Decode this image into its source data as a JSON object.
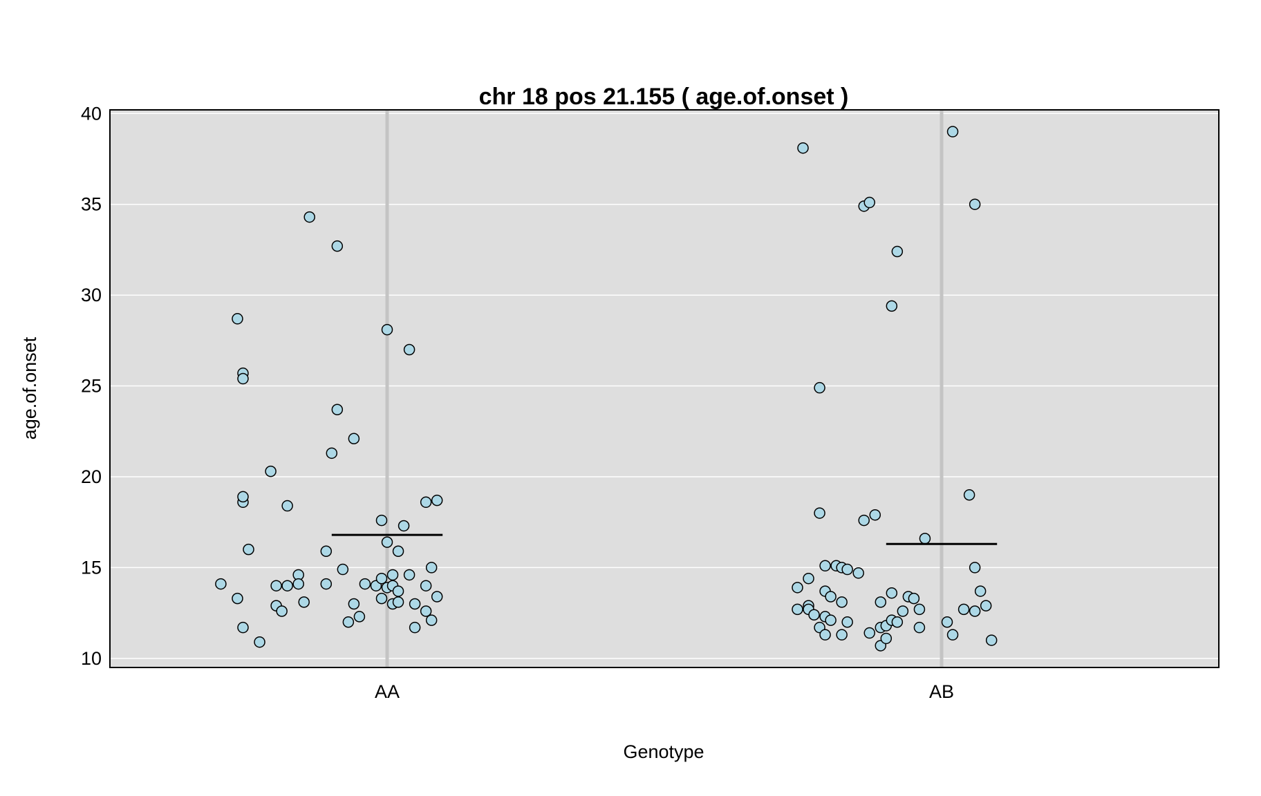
{
  "chart_data": {
    "type": "scatter",
    "title": "chr 18 pos 21.155 ( age.of.onset )",
    "xlabel": "Genotype",
    "ylabel": "age.of.onset",
    "categories": [
      "AA",
      "AB"
    ],
    "ylim": [
      9.5,
      40.2
    ],
    "yticks": [
      10,
      15,
      20,
      25,
      30,
      35,
      40
    ],
    "grid": true,
    "colors": {
      "panel_background": "#dedede",
      "gridline": "#ffffff",
      "category_line": "#c4c4c4",
      "point_fill": "#add8e6",
      "point_stroke": "#000000",
      "mean_line": "#000000"
    },
    "means": [
      {
        "category": "AA",
        "value": 16.8
      },
      {
        "category": "AB",
        "value": 16.3
      }
    ],
    "series": [
      {
        "category": "AA",
        "points": [
          {
            "x": 0.7,
            "y": 14.1
          },
          {
            "x": 0.73,
            "y": 28.7
          },
          {
            "x": 0.73,
            "y": 13.3
          },
          {
            "x": 0.74,
            "y": 11.7
          },
          {
            "x": 0.74,
            "y": 25.7
          },
          {
            "x": 0.74,
            "y": 25.4
          },
          {
            "x": 0.74,
            "y": 18.6
          },
          {
            "x": 0.74,
            "y": 18.9
          },
          {
            "x": 0.75,
            "y": 16.0
          },
          {
            "x": 0.77,
            "y": 10.9
          },
          {
            "x": 0.79,
            "y": 20.3
          },
          {
            "x": 0.8,
            "y": 14.0
          },
          {
            "x": 0.8,
            "y": 12.9
          },
          {
            "x": 0.81,
            "y": 12.6
          },
          {
            "x": 0.82,
            "y": 14.0
          },
          {
            "x": 0.82,
            "y": 18.4
          },
          {
            "x": 0.84,
            "y": 14.6
          },
          {
            "x": 0.84,
            "y": 14.1
          },
          {
            "x": 0.85,
            "y": 13.1
          },
          {
            "x": 0.86,
            "y": 34.3
          },
          {
            "x": 0.89,
            "y": 15.9
          },
          {
            "x": 0.89,
            "y": 14.1
          },
          {
            "x": 0.9,
            "y": 21.3
          },
          {
            "x": 0.91,
            "y": 32.7
          },
          {
            "x": 0.91,
            "y": 23.7
          },
          {
            "x": 0.92,
            "y": 14.9
          },
          {
            "x": 0.93,
            "y": 12.0
          },
          {
            "x": 0.94,
            "y": 22.1
          },
          {
            "x": 0.94,
            "y": 13.0
          },
          {
            "x": 0.95,
            "y": 12.3
          },
          {
            "x": 0.96,
            "y": 14.1
          },
          {
            "x": 0.98,
            "y": 14.0
          },
          {
            "x": 0.99,
            "y": 14.4
          },
          {
            "x": 0.99,
            "y": 17.6
          },
          {
            "x": 0.99,
            "y": 13.3
          },
          {
            "x": 1.0,
            "y": 16.4
          },
          {
            "x": 1.0,
            "y": 13.9
          },
          {
            "x": 1.0,
            "y": 28.1
          },
          {
            "x": 1.01,
            "y": 14.6
          },
          {
            "x": 1.01,
            "y": 13.0
          },
          {
            "x": 1.01,
            "y": 14.0
          },
          {
            "x": 1.02,
            "y": 15.9
          },
          {
            "x": 1.02,
            "y": 13.7
          },
          {
            "x": 1.02,
            "y": 13.1
          },
          {
            "x": 1.03,
            "y": 17.3
          },
          {
            "x": 1.04,
            "y": 14.6
          },
          {
            "x": 1.04,
            "y": 27.0
          },
          {
            "x": 1.05,
            "y": 13.0
          },
          {
            "x": 1.05,
            "y": 11.7
          },
          {
            "x": 1.07,
            "y": 14.0
          },
          {
            "x": 1.07,
            "y": 12.6
          },
          {
            "x": 1.07,
            "y": 18.6
          },
          {
            "x": 1.08,
            "y": 15.0
          },
          {
            "x": 1.08,
            "y": 12.1
          },
          {
            "x": 1.09,
            "y": 13.4
          },
          {
            "x": 1.09,
            "y": 18.7
          }
        ]
      },
      {
        "category": "AB",
        "points": [
          {
            "x": 1.74,
            "y": 12.7
          },
          {
            "x": 1.74,
            "y": 13.9
          },
          {
            "x": 1.75,
            "y": 38.1
          },
          {
            "x": 1.76,
            "y": 14.4
          },
          {
            "x": 1.76,
            "y": 12.9
          },
          {
            "x": 1.76,
            "y": 12.7
          },
          {
            "x": 1.77,
            "y": 12.4
          },
          {
            "x": 1.78,
            "y": 18.0
          },
          {
            "x": 1.78,
            "y": 11.7
          },
          {
            "x": 1.78,
            "y": 24.9
          },
          {
            "x": 1.79,
            "y": 13.7
          },
          {
            "x": 1.79,
            "y": 11.3
          },
          {
            "x": 1.79,
            "y": 12.3
          },
          {
            "x": 1.79,
            "y": 15.1
          },
          {
            "x": 1.8,
            "y": 12.1
          },
          {
            "x": 1.8,
            "y": 13.4
          },
          {
            "x": 1.81,
            "y": 15.1
          },
          {
            "x": 1.82,
            "y": 11.3
          },
          {
            "x": 1.82,
            "y": 15.0
          },
          {
            "x": 1.82,
            "y": 13.1
          },
          {
            "x": 1.83,
            "y": 14.9
          },
          {
            "x": 1.83,
            "y": 12.0
          },
          {
            "x": 1.85,
            "y": 14.7
          },
          {
            "x": 1.86,
            "y": 17.6
          },
          {
            "x": 1.86,
            "y": 34.9
          },
          {
            "x": 1.87,
            "y": 11.4
          },
          {
            "x": 1.87,
            "y": 35.1
          },
          {
            "x": 1.88,
            "y": 17.9
          },
          {
            "x": 1.89,
            "y": 10.7
          },
          {
            "x": 1.89,
            "y": 13.1
          },
          {
            "x": 1.89,
            "y": 11.7
          },
          {
            "x": 1.9,
            "y": 11.1
          },
          {
            "x": 1.9,
            "y": 11.8
          },
          {
            "x": 1.91,
            "y": 29.4
          },
          {
            "x": 1.91,
            "y": 12.1
          },
          {
            "x": 1.91,
            "y": 13.6
          },
          {
            "x": 1.92,
            "y": 32.4
          },
          {
            "x": 1.92,
            "y": 12.0
          },
          {
            "x": 1.93,
            "y": 12.6
          },
          {
            "x": 1.94,
            "y": 13.4
          },
          {
            "x": 1.95,
            "y": 13.3
          },
          {
            "x": 1.96,
            "y": 11.7
          },
          {
            "x": 1.96,
            "y": 12.7
          },
          {
            "x": 1.97,
            "y": 16.6
          },
          {
            "x": 2.01,
            "y": 12.0
          },
          {
            "x": 2.02,
            "y": 11.3
          },
          {
            "x": 2.02,
            "y": 39.0
          },
          {
            "x": 2.04,
            "y": 12.7
          },
          {
            "x": 2.05,
            "y": 19.0
          },
          {
            "x": 2.06,
            "y": 15.0
          },
          {
            "x": 2.06,
            "y": 12.6
          },
          {
            "x": 2.06,
            "y": 35.0
          },
          {
            "x": 2.07,
            "y": 13.7
          },
          {
            "x": 2.08,
            "y": 12.9
          },
          {
            "x": 2.09,
            "y": 11.0
          }
        ]
      }
    ]
  }
}
